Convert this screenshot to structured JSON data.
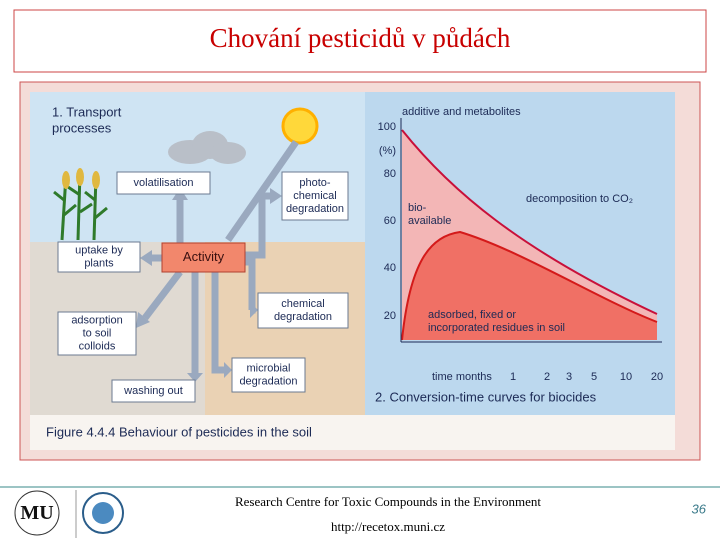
{
  "header": {
    "title": "Chování pesticidů v půdách"
  },
  "figure": {
    "diagram": {
      "heading": [
        "1. Transport",
        "processes"
      ],
      "nodes": [
        {
          "lines": [
            "volatilisation"
          ]
        },
        {
          "lines": [
            "photo-",
            "chemical",
            "degradation"
          ]
        },
        {
          "lines": [
            "uptake by",
            "plants"
          ]
        },
        {
          "lines": [
            "Activity"
          ]
        },
        {
          "lines": [
            "chemical",
            "degradation"
          ]
        },
        {
          "lines": [
            "adsorption",
            "to soil",
            "colloids"
          ]
        },
        {
          "lines": [
            "microbial",
            "degradation"
          ]
        },
        {
          "lines": [
            "washing out"
          ]
        }
      ]
    },
    "curves": {
      "top_label": "additive and metabolites",
      "y_labels": [
        "100",
        "(%)",
        "80",
        "60",
        "40",
        "20"
      ],
      "decomposition": "decomposition to CO₂",
      "bioavailable": [
        "bio-",
        "available"
      ],
      "residues": [
        "adsorbed, fixed or",
        "incorporated residues in soil"
      ],
      "x_title": "time months",
      "x_labels": [
        "1",
        "2",
        "3",
        "5",
        "10",
        "20"
      ],
      "heading": "2. Conversion-time curves for biocides"
    },
    "caption": "Figure 4.4.4 Behaviour of pesticides in the soil"
  },
  "footer": {
    "centre": "Research Centre for Toxic Compounds in the Environment",
    "url": "http://recetox.muni.cz",
    "page": "36"
  }
}
